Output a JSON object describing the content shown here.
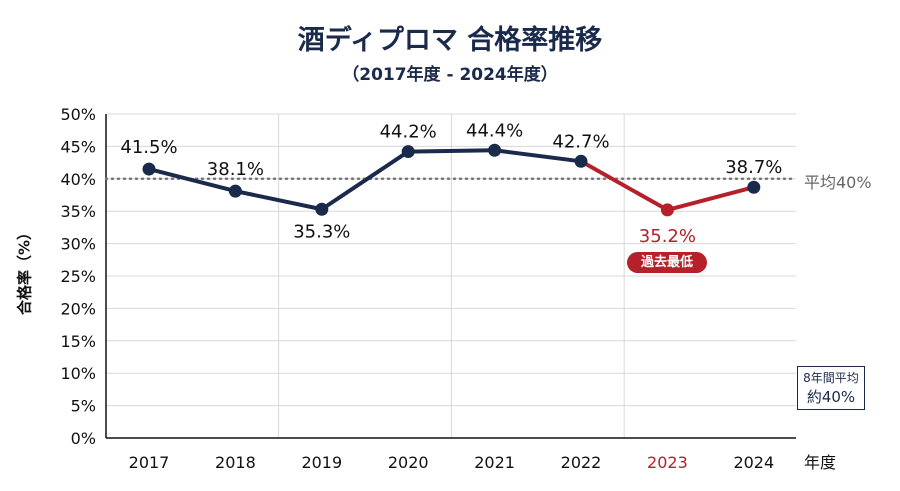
{
  "chart_data": {
    "type": "line",
    "title": "酒ディプロマ 合格率推移",
    "subtitle": "（2017年度 - 2024年度）",
    "xlabel": "年度",
    "ylabel": "合格率（%）",
    "ylim": [
      0,
      50
    ],
    "yticks": [
      "0%",
      "5%",
      "10%",
      "15%",
      "20%",
      "25%",
      "30%",
      "35%",
      "40%",
      "45%",
      "50%"
    ],
    "grid": true,
    "categories": [
      "2017",
      "2018",
      "2019",
      "2020",
      "2021",
      "2022",
      "2023",
      "2024"
    ],
    "values": [
      41.5,
      38.1,
      35.3,
      44.2,
      44.4,
      42.7,
      35.2,
      38.7
    ],
    "data_labels": [
      "41.5%",
      "38.1%",
      "35.3%",
      "44.2%",
      "44.4%",
      "42.7%",
      "35.2%",
      "38.7%"
    ],
    "highlight": {
      "category": "2023",
      "badge": "過去最低",
      "color": "#b5202a"
    },
    "reference_line": {
      "value": 40,
      "label": "平均40%"
    },
    "annotation": {
      "line1": "8年間平均",
      "line2": "約40%"
    },
    "colors": {
      "line": "#1a2a4a",
      "highlight": "#b5202a",
      "grid": "#d8d8d8",
      "avg": "#777777"
    }
  }
}
